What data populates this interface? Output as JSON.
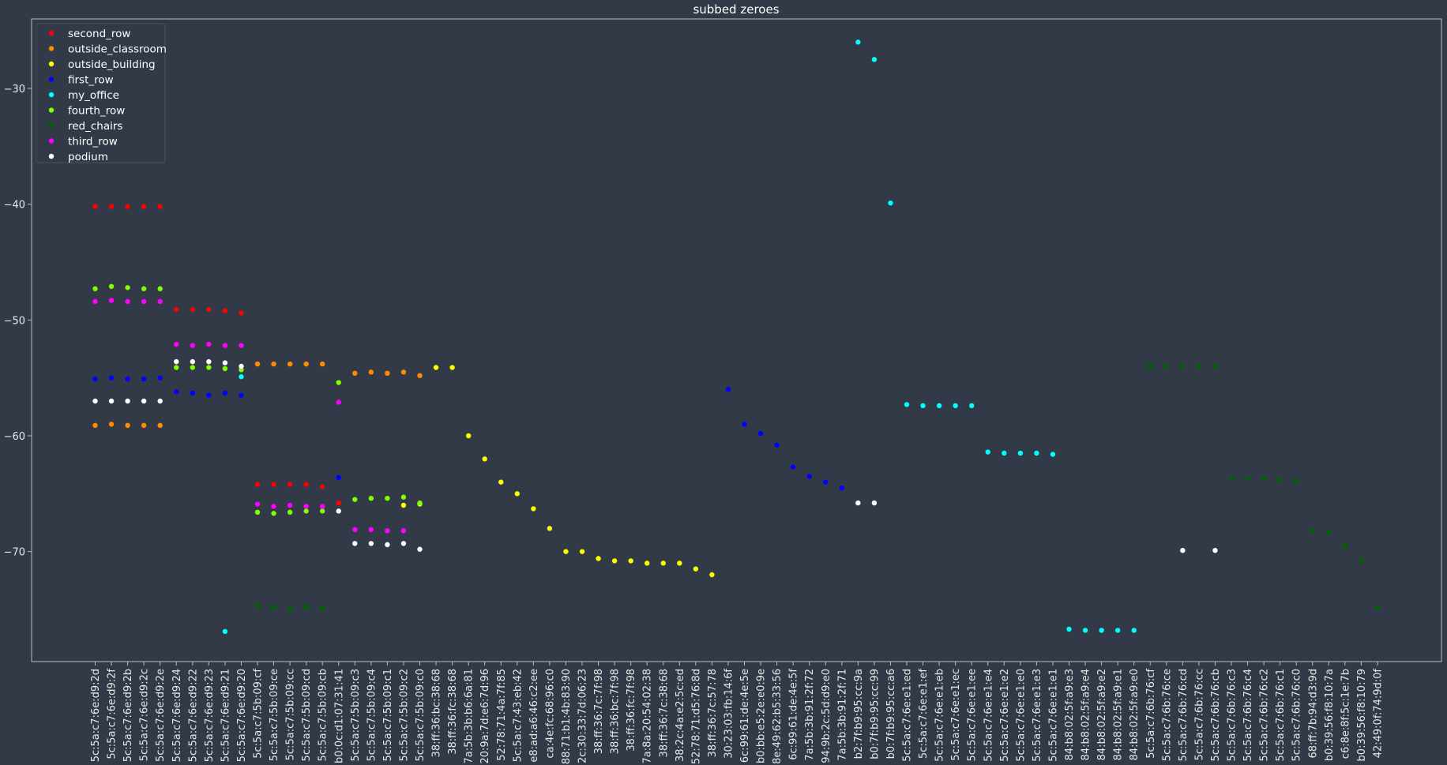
{
  "chart_data": {
    "type": "scatter",
    "title": "subbed zeroes",
    "xlabel": "",
    "ylabel": "",
    "ylim": [
      -79.5,
      -24
    ],
    "yticks": [
      -30,
      -40,
      -50,
      -60,
      -70
    ],
    "grid": false,
    "legend_position": "top-left",
    "background_color": "#323a48",
    "axes_color": "#b8bcc8",
    "categories": [
      "5c:5a:c7:6e:d9:2d",
      "5c:5a:c7:6e:d9:2f",
      "5c:5a:c7:6e:d9:2b",
      "5c:5a:c7:6e:d9:2c",
      "5c:5a:c7:6e:d9:2e",
      "5c:5a:c7:6e:d9:24",
      "5c:5a:c7:6e:d9:22",
      "5c:5a:c7:6e:d9:23",
      "5c:5a:c7:6e:d9:21",
      "5c:5a:c7:6e:d9:20",
      "5c:5a:c7:5b:09:cf",
      "5c:5a:c7:5b:09:ce",
      "5c:5a:c7:5b:09:cc",
      "5c:5a:c7:5b:09:cd",
      "5c:5a:c7:5b:09:cb",
      "b0:0c:d1:07:31:41",
      "5c:5a:c7:5b:09:c3",
      "5c:5a:c7:5b:09:c4",
      "5c:5a:c7:5b:09:c1",
      "5c:5a:c7:5b:09:c2",
      "5c:5a:c7:5b:09:c0",
      "38:ff:36:bc:38:68",
      "38:ff:36:fc:38:68",
      "7a:5b:3b:b6:6a:81",
      "20:9a:7d:e6:7d:96",
      "52:78:71:4a:7f:85",
      "5c:5a:c7:43:eb:42",
      "e8:ad:a6:46:c2:ee",
      "ca:4e:fc:68:96:c0",
      "88:71:b1:4b:83:90",
      "2c:30:33:7d:06:23",
      "38:ff:36:7c:7f:98",
      "38:ff:36:bc:7f:98",
      "38:ff:36:fc:7f:98",
      "7a:8a:20:54:02:38",
      "38:ff:36:7c:38:68",
      "38:2c:4a:e2:5c:ed",
      "52:78:71:d5:76:8d",
      "38:ff:36:7c:57:78",
      "30:23:03:fb:14:6f",
      "6c:99:61:de:4e:5e",
      "b0:bb:e5:2e:e0:9e",
      "8e:49:62:b5:33:56",
      "6c:99:61:de:4e:5f",
      "7a:5b:3b:91:2f:72",
      "94:9b:2c:5d:d9:e0",
      "7a:5b:3b:91:2f:71",
      "b2:7f:b9:95:cc:9a",
      "b0:7f:b9:95:cc:99",
      "b0:7f:b9:95:cc:a6",
      "5c:5a:c7:6e:e1:ed",
      "5c:5a:c7:6e:e1:ef",
      "5c:5a:c7:6e:e1:eb",
      "5c:5a:c7:6e:e1:ec",
      "5c:5a:c7:6e:e1:ee",
      "5c:5a:c7:6e:e1:e4",
      "5c:5a:c7:6e:e1:e2",
      "5c:5a:c7:6e:e1:e0",
      "5c:5a:c7:6e:e1:e3",
      "5c:5a:c7:6e:e1:e1",
      "84:b8:02:5f:a9:e3",
      "84:b8:02:5f:a9:e4",
      "84:b8:02:5f:a9:e2",
      "84:b8:02:5f:a9:e1",
      "84:b8:02:5f:a9:e0",
      "5c:5a:c7:6b:76:cf",
      "5c:5a:c7:6b:76:ce",
      "5c:5a:c7:6b:76:cd",
      "5c:5a:c7:6b:76:cc",
      "5c:5a:c7:6b:76:cb",
      "5c:5a:c7:6b:76:c3",
      "5c:5a:c7:6b:76:c4",
      "5c:5a:c7:6b:76:c2",
      "5c:5a:c7:6b:76:c1",
      "5c:5a:c7:6b:76:c0",
      "68:ff:7b:94:d3:9d",
      "b0:39:56:f8:10:7a",
      "c6:8e:8f:5c:1e:7b",
      "b0:39:56:f8:10:79",
      "42:49:0f:74:9d:0f"
    ],
    "series": [
      {
        "name": "second_row",
        "color": "#ff0000",
        "points": [
          [
            0,
            -40.2
          ],
          [
            1,
            -40.2
          ],
          [
            2,
            -40.2
          ],
          [
            3,
            -40.2
          ],
          [
            4,
            -40.2
          ],
          [
            5,
            -49.1
          ],
          [
            6,
            -49.1
          ],
          [
            7,
            -49.1
          ],
          [
            8,
            -49.2
          ],
          [
            9,
            -49.4
          ],
          [
            10,
            -64.2
          ],
          [
            11,
            -64.2
          ],
          [
            12,
            -64.2
          ],
          [
            13,
            -64.2
          ],
          [
            14,
            -64.4
          ],
          [
            15,
            -65.8
          ]
        ]
      },
      {
        "name": "outside_classroom",
        "color": "#ff8c00",
        "points": [
          [
            0,
            -59.1
          ],
          [
            1,
            -59
          ],
          [
            2,
            -59.1
          ],
          [
            3,
            -59.1
          ],
          [
            4,
            -59.1
          ],
          [
            10,
            -53.8
          ],
          [
            11,
            -53.8
          ],
          [
            12,
            -53.8
          ],
          [
            13,
            -53.8
          ],
          [
            14,
            -53.8
          ],
          [
            16,
            -54.6
          ],
          [
            17,
            -54.5
          ],
          [
            18,
            -54.6
          ],
          [
            19,
            -54.5
          ],
          [
            20,
            -54.8
          ]
        ]
      },
      {
        "name": "outside_building",
        "color": "#ffff00",
        "points": [
          [
            19,
            -66
          ],
          [
            20,
            -65.9
          ],
          [
            21,
            -54.1
          ],
          [
            22,
            -54.1
          ],
          [
            23,
            -60
          ],
          [
            24,
            -62
          ],
          [
            25,
            -64
          ],
          [
            26,
            -65
          ],
          [
            27,
            -66.3
          ],
          [
            28,
            -68
          ],
          [
            29,
            -70
          ],
          [
            30,
            -70
          ],
          [
            31,
            -70.6
          ],
          [
            32,
            -70.8
          ],
          [
            33,
            -70.8
          ],
          [
            34,
            -71
          ],
          [
            35,
            -71
          ],
          [
            36,
            -71
          ],
          [
            37,
            -71.5
          ],
          [
            38,
            -72
          ]
        ]
      },
      {
        "name": "first_row",
        "color": "#0000ff",
        "points": [
          [
            0,
            -55.1
          ],
          [
            1,
            -55
          ],
          [
            2,
            -55.1
          ],
          [
            3,
            -55.1
          ],
          [
            4,
            -55
          ],
          [
            5,
            -56.2
          ],
          [
            6,
            -56.3
          ],
          [
            7,
            -56.5
          ],
          [
            8,
            -56.3
          ],
          [
            9,
            -56.5
          ],
          [
            15,
            -63.6
          ],
          [
            39,
            -56
          ],
          [
            40,
            -59
          ],
          [
            41,
            -59.8
          ],
          [
            42,
            -60.8
          ],
          [
            43,
            -62.7
          ],
          [
            44,
            -63.5
          ],
          [
            45,
            -64
          ],
          [
            46,
            -64.5
          ]
        ]
      },
      {
        "name": "my_office",
        "color": "#00ffff",
        "points": [
          [
            8,
            -76.9
          ],
          [
            9,
            -54.9
          ],
          [
            47,
            -26
          ],
          [
            48,
            -27.5
          ],
          [
            49,
            -39.9
          ],
          [
            50,
            -57.3
          ],
          [
            51,
            -57.4
          ],
          [
            52,
            -57.4
          ],
          [
            53,
            -57.4
          ],
          [
            54,
            -57.4
          ],
          [
            55,
            -61.4
          ],
          [
            56,
            -61.5
          ],
          [
            57,
            -61.5
          ],
          [
            58,
            -61.5
          ],
          [
            59,
            -61.6
          ],
          [
            60,
            -76.7
          ],
          [
            61,
            -76.8
          ],
          [
            62,
            -76.8
          ],
          [
            63,
            -76.8
          ],
          [
            64,
            -76.8
          ]
        ]
      },
      {
        "name": "fourth_row",
        "color": "#7fff00",
        "points": [
          [
            0,
            -47.3
          ],
          [
            1,
            -47.1
          ],
          [
            2,
            -47.2
          ],
          [
            3,
            -47.3
          ],
          [
            4,
            -47.3
          ],
          [
            5,
            -54.1
          ],
          [
            6,
            -54.1
          ],
          [
            7,
            -54.1
          ],
          [
            8,
            -54.2
          ],
          [
            9,
            -54.3
          ],
          [
            10,
            -66.6
          ],
          [
            11,
            -66.7
          ],
          [
            12,
            -66.6
          ],
          [
            13,
            -66.5
          ],
          [
            14,
            -66.5
          ],
          [
            15,
            -55.4
          ],
          [
            16,
            -65.5
          ],
          [
            17,
            -65.4
          ],
          [
            18,
            -65.4
          ],
          [
            19,
            -65.3
          ],
          [
            20,
            -65.8
          ]
        ]
      },
      {
        "name": "red_chairs",
        "color": "#006400",
        "points": [
          [
            10,
            -74.7
          ],
          [
            11,
            -74.8
          ],
          [
            12,
            -75
          ],
          [
            13,
            -74.8
          ],
          [
            14,
            -74.9
          ],
          [
            65,
            -54
          ],
          [
            66,
            -54
          ],
          [
            67,
            -54
          ],
          [
            68,
            -54
          ],
          [
            69,
            -54
          ],
          [
            70,
            -63.7
          ],
          [
            71,
            -63.7
          ],
          [
            72,
            -63.7
          ],
          [
            73,
            -63.8
          ],
          [
            74,
            -63.9
          ],
          [
            75,
            -68.2
          ],
          [
            76,
            -68.3
          ],
          [
            77,
            -69.5
          ],
          [
            78,
            -70.8
          ],
          [
            79,
            -74.8
          ]
        ]
      },
      {
        "name": "third_row",
        "color": "#ff00ff",
        "points": [
          [
            0,
            -48.4
          ],
          [
            1,
            -48.3
          ],
          [
            2,
            -48.4
          ],
          [
            3,
            -48.4
          ],
          [
            4,
            -48.4
          ],
          [
            5,
            -52.1
          ],
          [
            6,
            -52.2
          ],
          [
            7,
            -52.1
          ],
          [
            8,
            -52.2
          ],
          [
            9,
            -52.2
          ],
          [
            10,
            -65.9
          ],
          [
            11,
            -66.1
          ],
          [
            12,
            -66
          ],
          [
            13,
            -66.1
          ],
          [
            14,
            -66.1
          ],
          [
            15,
            -57.1
          ],
          [
            16,
            -68.1
          ],
          [
            17,
            -68.1
          ],
          [
            18,
            -68.2
          ],
          [
            19,
            -68.2
          ]
        ]
      },
      {
        "name": "podium",
        "color": "#ffffff",
        "points": [
          [
            0,
            -57
          ],
          [
            1,
            -57
          ],
          [
            2,
            -57
          ],
          [
            3,
            -57
          ],
          [
            4,
            -57
          ],
          [
            5,
            -53.6
          ],
          [
            6,
            -53.6
          ],
          [
            7,
            -53.6
          ],
          [
            8,
            -53.7
          ],
          [
            9,
            -54
          ],
          [
            15,
            -66.5
          ],
          [
            16,
            -69.3
          ],
          [
            17,
            -69.3
          ],
          [
            18,
            -69.4
          ],
          [
            19,
            -69.3
          ],
          [
            20,
            -69.8
          ],
          [
            47,
            -65.8
          ],
          [
            48,
            -65.8
          ],
          [
            67,
            -69.9
          ],
          [
            69,
            -69.9
          ]
        ]
      }
    ]
  }
}
